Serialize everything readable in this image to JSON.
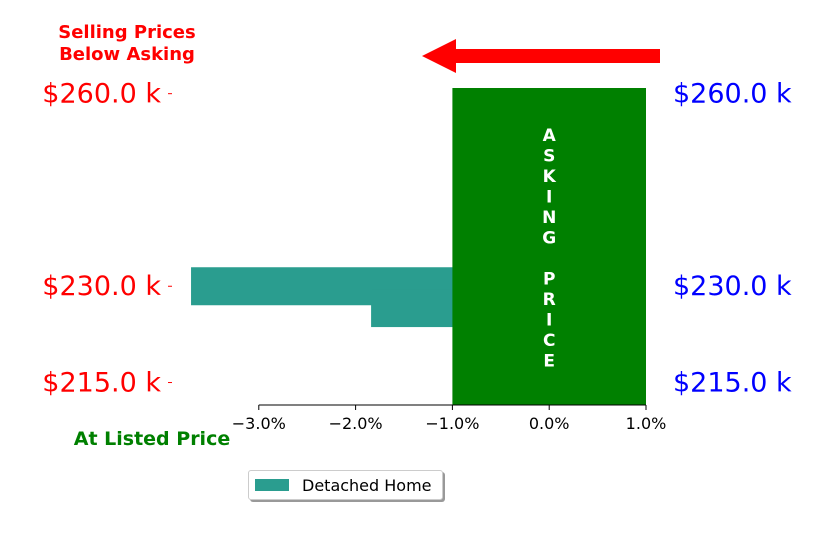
{
  "chart_data": {
    "type": "bar",
    "orientation": "horizontal",
    "annotation_top": [
      "Selling Prices",
      "Below Asking"
    ],
    "annotation_bottom": "At Listed Price",
    "asking_price_label": [
      "A",
      "S",
      "K",
      "I",
      "N",
      "G",
      "",
      "P",
      "R",
      "I",
      "C",
      "E"
    ],
    "series": [
      {
        "name": "Detached Home",
        "bars": [
          {
            "price_k": 230.0,
            "pct": -3.7
          },
          {
            "price_k": 226.6,
            "pct": -1.84
          }
        ]
      }
    ],
    "asking_band": {
      "x_from": -1.0,
      "x_to": 1.0
    },
    "x_ticks": [
      -3.0,
      -2.0,
      -1.0,
      0.0,
      1.0
    ],
    "x_tick_labels": [
      "−3.0%",
      "−2.0%",
      "−1.0%",
      "0.0%",
      "1.0%"
    ],
    "xlim": [
      -4.0,
      1.0
    ],
    "y_ticks": [
      215.0,
      230.0,
      260.0
    ],
    "y_tick_labels_left": [
      "$215.0 k",
      "$230.0 k",
      "$260.0 k"
    ],
    "y_tick_labels_right": [
      "$215.0 k",
      "$230.0 k",
      "$260.0 k"
    ],
    "ylim": [
      211.5,
      264.0
    ],
    "arrow_direction": "left",
    "legend_placement": "bottom-center",
    "grid": false,
    "colors": {
      "bars": "#2a9d8f",
      "asking_band": "#008000",
      "left_labels": "#ff0000",
      "right_labels": "#0000ff",
      "annotation_top": "#ff0000",
      "annotation_bottom": "#008000",
      "arrow": "#ff0000",
      "asking_text": "#ffffff"
    }
  },
  "legend": {
    "label": "Detached Home"
  }
}
